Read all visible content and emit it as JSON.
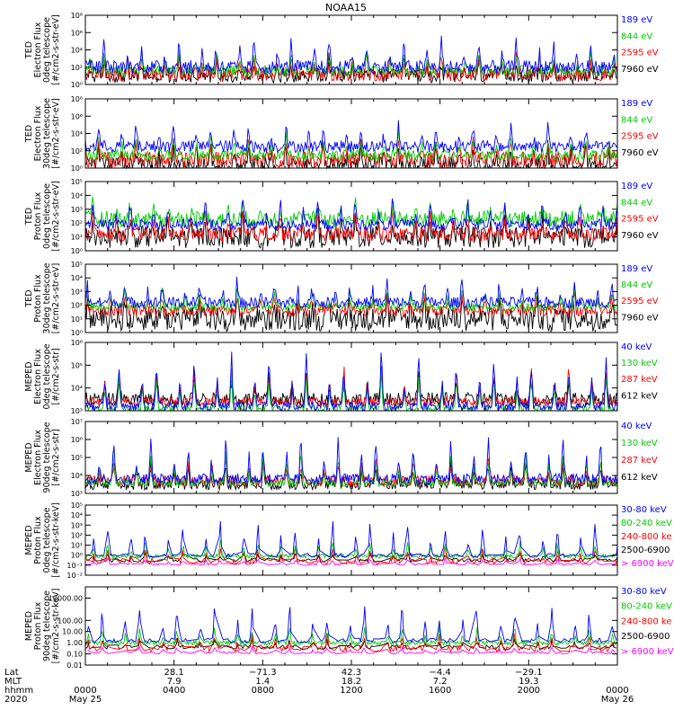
{
  "chart_data": [
    {
      "type": "line",
      "title": "NOAA15",
      "ylabel_lines": [
        "TED",
        "Electron Flux",
        "0deg telescope",
        "[#/cm2-s-str-eV]"
      ],
      "ytick_labels": [
        "10^0",
        "10^2",
        "10^4",
        "10^6",
        "10^8"
      ],
      "ytick_exps": [
        0,
        2,
        4,
        6,
        8
      ],
      "ytick_format": "pow",
      "ylim": [
        1,
        100000000
      ],
      "yscale": "log",
      "series": [
        {
          "name": "7960 eV",
          "color": "#000000",
          "base": 1.0,
          "spread": 0.8,
          "peak": 3.0
        },
        {
          "name": "2595 eV",
          "color": "#ff0000",
          "base": 1.2,
          "spread": 0.8,
          "peak": 3.5
        },
        {
          "name": "844 eV",
          "color": "#00cc00",
          "base": 1.6,
          "spread": 0.6,
          "peak": 4.0
        },
        {
          "name": "189 eV",
          "color": "#0000ff",
          "base": 2.0,
          "spread": 0.8,
          "peak": 5.5
        }
      ]
    },
    {
      "type": "line",
      "ylabel_lines": [
        "TED",
        "Electron Flux",
        "30deg telescope",
        "[#/cm2-s-str-eV]"
      ],
      "ytick_labels": [
        "10^0",
        "10^2",
        "10^4",
        "10^6",
        "10^8"
      ],
      "ytick_exps": [
        0,
        2,
        4,
        6,
        8
      ],
      "ytick_format": "pow",
      "ylim": [
        1,
        100000000
      ],
      "yscale": "log",
      "series": [
        {
          "name": "7960 eV",
          "color": "#000000",
          "base": 0.3,
          "spread": 1.0,
          "peak": 3.0
        },
        {
          "name": "2595 eV",
          "color": "#ff0000",
          "base": 1.0,
          "spread": 0.9,
          "peak": 3.5
        },
        {
          "name": "844 eV",
          "color": "#00cc00",
          "base": 1.5,
          "spread": 0.6,
          "peak": 4.2
        },
        {
          "name": "189 eV",
          "color": "#0000ff",
          "base": 2.5,
          "spread": 0.7,
          "peak": 5.5
        }
      ]
    },
    {
      "type": "line",
      "ylabel_lines": [
        "TED",
        "Proton Flux",
        "0deg telescope",
        "[#/cm2-s-str-eV]"
      ],
      "ytick_labels": [
        "10^0",
        "10^1",
        "10^2",
        "10^3",
        "10^4",
        "10^5"
      ],
      "ytick_exps": [
        0,
        1,
        2,
        3,
        4,
        5
      ],
      "ytick_format": "pow",
      "ylim": [
        1,
        100000
      ],
      "yscale": "log",
      "series": [
        {
          "name": "7960 eV",
          "color": "#000000",
          "base": 1.0,
          "spread": 0.8,
          "peak": 2.5
        },
        {
          "name": "2595 eV",
          "color": "#ff0000",
          "base": 1.2,
          "spread": 0.5,
          "peak": 3.0
        },
        {
          "name": "844 eV",
          "color": "#00cc00",
          "base": 2.3,
          "spread": 0.6,
          "peak": 3.5
        },
        {
          "name": "189 eV",
          "color": "#0000ff",
          "base": 1.9,
          "spread": 0.4,
          "peak": 3.8
        }
      ]
    },
    {
      "type": "line",
      "ylabel_lines": [
        "TED",
        "Proton Flux",
        "30deg telescope",
        "[#/cm2-s-str-eV]"
      ],
      "ytick_labels": [
        "10^0",
        "10^1",
        "10^2",
        "10^3",
        "10^4",
        "10^5"
      ],
      "ytick_exps": [
        0,
        1,
        2,
        3,
        4,
        5
      ],
      "ytick_format": "pow",
      "ylim": [
        1,
        100000
      ],
      "yscale": "log",
      "series": [
        {
          "name": "7960 eV",
          "color": "#000000",
          "base": 1.0,
          "spread": 0.9,
          "peak": 2.5
        },
        {
          "name": "2595 eV",
          "color": "#ff0000",
          "base": 1.6,
          "spread": 0.4,
          "peak": 3.0
        },
        {
          "name": "844 eV",
          "color": "#00cc00",
          "base": 1.9,
          "spread": 0.3,
          "peak": 3.3
        },
        {
          "name": "189 eV",
          "color": "#0000ff",
          "base": 2.2,
          "spread": 0.4,
          "peak": 4.0
        }
      ]
    },
    {
      "type": "line",
      "ylabel_lines": [
        "MEPED",
        "Electron Flux",
        "0deg telescope",
        "[#/cm2-s-str]"
      ],
      "ytick_labels": [
        "10^3",
        "10^4",
        "10^5",
        "10^6"
      ],
      "ytick_exps": [
        3,
        4,
        5,
        6
      ],
      "ytick_format": "pow",
      "ylim": [
        1000,
        1000000
      ],
      "yscale": "log",
      "series": [
        {
          "name": "612 keV",
          "color": "#000000",
          "base": 3.5,
          "spread": 0.3,
          "peak": 4.8
        },
        {
          "name": "287 keV",
          "color": "#ff0000",
          "base": 3.4,
          "spread": 0.2,
          "peak": 5.0
        },
        {
          "name": "130 keV",
          "color": "#00cc00",
          "base": 3.1,
          "spread": 0.15,
          "peak": 4.8
        },
        {
          "name": "40 keV",
          "color": "#0000ff",
          "base": 3.2,
          "spread": 0.2,
          "peak": 5.8
        }
      ]
    },
    {
      "type": "line",
      "ylabel_lines": [
        "MEPED",
        "Electron Flux",
        "90deg telescope",
        "[#/cm2-s-str]"
      ],
      "ytick_labels": [
        "10^3",
        "10^4",
        "10^5",
        "10^6",
        "10^7"
      ],
      "ytick_exps": [
        3,
        4,
        5,
        6,
        7
      ],
      "ytick_format": "pow",
      "ylim": [
        1000,
        10000000
      ],
      "yscale": "log",
      "series": [
        {
          "name": "612 keV",
          "color": "#000000",
          "base": 3.5,
          "spread": 0.3,
          "peak": 4.8
        },
        {
          "name": "287 keV",
          "color": "#ff0000",
          "base": 3.7,
          "spread": 0.3,
          "peak": 5.0
        },
        {
          "name": "130 keV",
          "color": "#00cc00",
          "base": 3.6,
          "spread": 0.2,
          "peak": 5.5
        },
        {
          "name": "40 keV",
          "color": "#0000ff",
          "base": 3.8,
          "spread": 0.3,
          "peak": 6.3
        }
      ]
    },
    {
      "type": "line",
      "ylabel_lines": [
        "MEPED",
        "Proton Flux",
        "0deg telescope",
        "[#/cm2-s-str-keV]"
      ],
      "ytick_labels": [
        "10^-2",
        "10^-1",
        "10^0",
        "10^1",
        "10^2",
        "10^3",
        "10^4",
        "10^5"
      ],
      "ytick_exps": [
        -2,
        -1,
        0,
        1,
        2,
        3,
        4,
        5
      ],
      "ytick_format": "pow",
      "ylim": [
        0.01,
        100000
      ],
      "yscale": "log",
      "series": [
        {
          "name": "> 6900 keV",
          "color": "#ff00ff",
          "base": -0.9,
          "spread": 0.1,
          "peak": -0.3,
          "sparse": true
        },
        {
          "name": "2500-6900",
          "color": "#000000",
          "base": -0.5,
          "spread": 0.2,
          "peak": 0.3,
          "sparse": true
        },
        {
          "name": "240-800 ke",
          "color": "#ff0000",
          "base": -0.6,
          "spread": 0.3,
          "peak": 0.8,
          "sparse": true
        },
        {
          "name": "80-240 keV",
          "color": "#00cc00",
          "base": -0.1,
          "spread": 0.2,
          "peak": 1.5
        },
        {
          "name": "30-80 keV",
          "color": "#0000ff",
          "base": 0.0,
          "spread": 0.2,
          "peak": 3.5,
          "sparse": true
        }
      ]
    },
    {
      "type": "line",
      "ylabel_lines": [
        "MEPED",
        "Proton Flux",
        "90deg telescope",
        "[#/cm2-s-str-keV]"
      ],
      "ytick_labels": [
        "0.01",
        "0.10",
        "1.00",
        "10.00",
        "100.00",
        "10000.00"
      ],
      "ytick_exps": [
        -2,
        -1,
        0,
        1,
        2,
        4
      ],
      "ytick_format": "plain",
      "ylim": [
        0.01,
        100000
      ],
      "yscale": "log",
      "series": [
        {
          "name": "> 6900 keV",
          "color": "#ff00ff",
          "base": -0.9,
          "spread": 0.1,
          "peak": -0.3,
          "sparse": true
        },
        {
          "name": "2500-6900",
          "color": "#000000",
          "base": -0.4,
          "spread": 0.2,
          "peak": 0.3,
          "sparse": true
        },
        {
          "name": "240-800 ke",
          "color": "#ff0000",
          "base": -0.5,
          "spread": 0.3,
          "peak": 0.8,
          "sparse": true
        },
        {
          "name": "80-240 keV",
          "color": "#00cc00",
          "base": 0.0,
          "spread": 0.2,
          "peak": 1.5
        },
        {
          "name": "30-80 keV",
          "color": "#0000ff",
          "base": 0.2,
          "spread": 0.2,
          "peak": 3.5,
          "sparse": true
        }
      ]
    }
  ],
  "time_axis": {
    "x_range_hours": [
      0,
      24
    ],
    "tick_hours": [
      0,
      4,
      8,
      12,
      16,
      20,
      24
    ],
    "row_labels": [
      "Lat",
      "MLT",
      "hhmm",
      "2020"
    ],
    "rows": [
      {
        "hour": 0,
        "lat": "",
        "mlt": "",
        "hhmm": "0000",
        "date": "May 25"
      },
      {
        "hour": 4,
        "lat": "28.1",
        "mlt": "7.9",
        "hhmm": "0400",
        "date": ""
      },
      {
        "hour": 8,
        "lat": "−71.3",
        "mlt": "1.4",
        "hhmm": "0800",
        "date": ""
      },
      {
        "hour": 12,
        "lat": "42.3",
        "mlt": "18.2",
        "hhmm": "1200",
        "date": ""
      },
      {
        "hour": 16,
        "lat": "−4.4",
        "mlt": "7.2",
        "hhmm": "1600",
        "date": ""
      },
      {
        "hour": 20,
        "lat": "−29.1",
        "mlt": "19.3",
        "hhmm": "2000",
        "date": ""
      },
      {
        "hour": 24,
        "lat": "",
        "mlt": "",
        "hhmm": "0000",
        "date": "May 26"
      }
    ],
    "orbits_per_day": 14.2
  }
}
